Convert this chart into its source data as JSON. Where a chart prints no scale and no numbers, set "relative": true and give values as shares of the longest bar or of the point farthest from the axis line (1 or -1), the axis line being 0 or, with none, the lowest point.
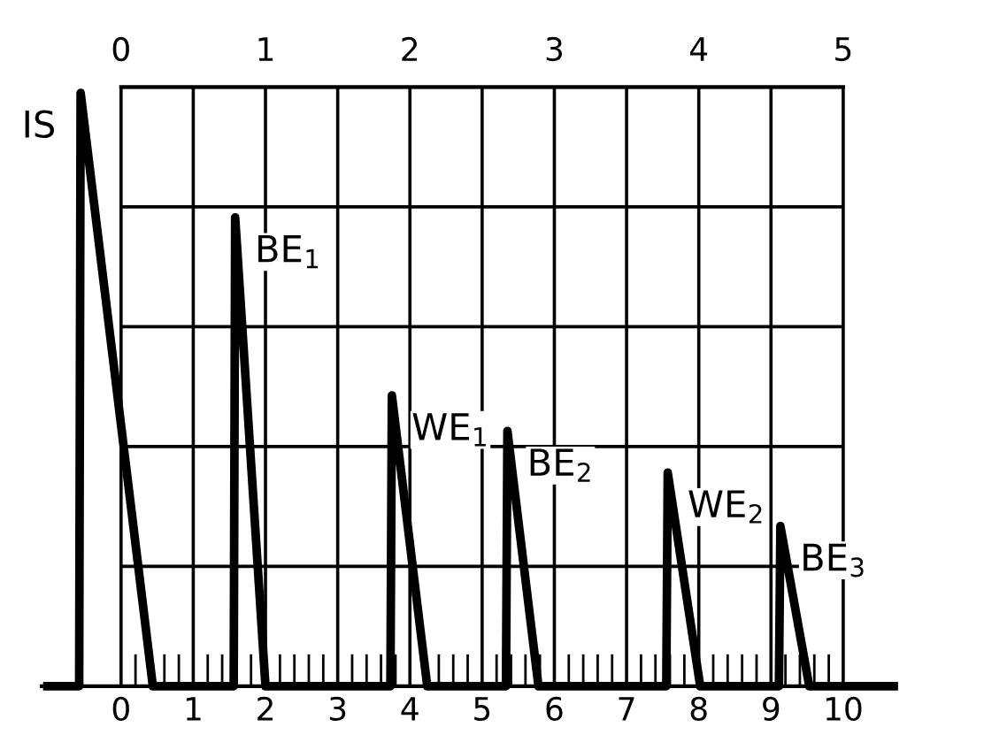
{
  "chart_data": {
    "type": "line",
    "relative": true,
    "grid": true,
    "marker": "none",
    "line_style": "solid",
    "xlim": [
      -1.1,
      10.7
    ],
    "xticks": [
      0,
      1,
      2,
      3,
      4,
      5,
      6,
      7,
      8,
      9,
      10
    ],
    "x2lim": [
      0,
      5
    ],
    "x2ticks": [
      0,
      1,
      2,
      3,
      4,
      5
    ],
    "series": [
      {
        "color": "#000000",
        "x": [
          -1.02,
          -0.58,
          -0.56,
          0.44,
          1.56,
          1.58,
          2.0,
          3.73,
          3.75,
          4.24,
          5.33,
          5.35,
          5.78,
          7.55,
          7.57,
          8.02,
          9.11,
          9.13,
          9.53,
          10.7
        ],
        "values": [
          0,
          0,
          1.0,
          0,
          0,
          0.79,
          0,
          0,
          0.49,
          0,
          0,
          0.43,
          0,
          0,
          0.36,
          0,
          0,
          0.27,
          0,
          0
        ]
      }
    ],
    "annotations": [
      {
        "text": "IS",
        "x": -0.56,
        "y": 1.0
      },
      {
        "text": "BE$_{1}$",
        "x": 1.58,
        "y": 0.79
      },
      {
        "text": "WE$_{1}$",
        "x": 3.75,
        "y": 0.49
      },
      {
        "text": "BE$_{2}$",
        "x": 5.35,
        "y": 0.43
      },
      {
        "text": "WE$_{2}$",
        "x": 7.57,
        "y": 0.36
      },
      {
        "text": "BE$_{3}$",
        "x": 9.13,
        "y": 0.27
      }
    ]
  }
}
